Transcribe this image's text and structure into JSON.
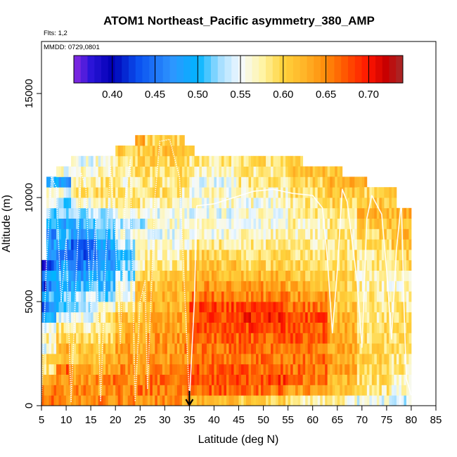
{
  "chart_data": {
    "type": "heatmap",
    "title": "ATOM1 Northeast_Pacific asymmetry_380_AMP",
    "flights_note": "Flts: 1,2",
    "date_note": "MMDD: 0729,0801",
    "xlabel": "Latitude (deg N)",
    "ylabel": "Altitude (m)",
    "xlim": [
      5,
      85
    ],
    "ylim": [
      0,
      17500
    ],
    "x_ticks": [
      "5",
      "10",
      "15",
      "20",
      "25",
      "30",
      "35",
      "40",
      "45",
      "50",
      "55",
      "60",
      "65",
      "70",
      "75",
      "80",
      "85"
    ],
    "y_ticks": [
      "0",
      "5000",
      "10000",
      "15000"
    ],
    "colorbar": {
      "range": [
        0.355,
        0.74
      ],
      "ticks": [
        "0.40",
        "0.45",
        "0.50",
        "0.55",
        "0.60",
        "0.65",
        "0.70"
      ],
      "tick_values": [
        0.4,
        0.45,
        0.5,
        0.55,
        0.6,
        0.65,
        0.7
      ],
      "stops": [
        {
          "v": 0.355,
          "color": "#8a2be2"
        },
        {
          "v": 0.375,
          "color": "#2b14d8"
        },
        {
          "v": 0.4,
          "color": "#0000b4"
        },
        {
          "v": 0.43,
          "color": "#0a50f0"
        },
        {
          "v": 0.47,
          "color": "#2e96ff"
        },
        {
          "v": 0.5,
          "color": "#00b4ff"
        },
        {
          "v": 0.525,
          "color": "#a0dcff"
        },
        {
          "v": 0.55,
          "color": "#f5faff"
        },
        {
          "v": 0.575,
          "color": "#fff5a8"
        },
        {
          "v": 0.6,
          "color": "#ffd23c"
        },
        {
          "v": 0.625,
          "color": "#ffb428"
        },
        {
          "v": 0.65,
          "color": "#ff8c0a"
        },
        {
          "v": 0.675,
          "color": "#ff5000"
        },
        {
          "v": 0.7,
          "color": "#ff1400"
        },
        {
          "v": 0.72,
          "color": "#c80000"
        },
        {
          "v": 0.74,
          "color": "#a52a2a"
        }
      ]
    },
    "annotation": {
      "type": "arrow",
      "latitude": 35,
      "label": ""
    },
    "bin_height_m": 500,
    "profiles": [
      {
        "lat_min": 5,
        "lat_max": 11,
        "alt_max": 7000,
        "base": [
          0.66,
          0.65,
          0.63,
          0.57,
          0.6,
          0.55,
          0.56,
          0.53,
          0.49,
          0.43,
          0.48,
          0.42,
          0.47,
          0.4
        ]
      },
      {
        "lat_min": 6,
        "lat_max": 10,
        "alt_max": 11000,
        "base": [
          0.66,
          0.65,
          0.63,
          0.59,
          0.61,
          0.56,
          0.57,
          0.54,
          0.5,
          0.46,
          0.5,
          0.46,
          0.5,
          0.44,
          0.47,
          0.48,
          0.45,
          0.5,
          0.52,
          0.54,
          0.56,
          0.5
        ]
      },
      {
        "lat_min": 8,
        "lat_max": 16,
        "alt_max": 11500,
        "base": [
          0.64,
          0.65,
          0.65,
          0.67,
          0.62,
          0.63,
          0.6,
          0.58,
          0.55,
          0.52,
          0.51,
          0.49,
          0.5,
          0.47,
          0.45,
          0.47,
          0.5,
          0.48,
          0.53,
          0.51,
          0.55,
          0.48,
          0.56
        ]
      },
      {
        "lat_min": 11,
        "lat_max": 20,
        "alt_max": 12000,
        "base": [
          0.65,
          0.65,
          0.64,
          0.63,
          0.61,
          0.61,
          0.59,
          0.57,
          0.55,
          0.53,
          0.53,
          0.5,
          0.48,
          0.46,
          0.44,
          0.43,
          0.47,
          0.5,
          0.53,
          0.56,
          0.58,
          0.57,
          0.56,
          0.55
        ]
      },
      {
        "lat_min": 16,
        "lat_max": 25,
        "alt_max": 12000,
        "base": [
          0.65,
          0.64,
          0.66,
          0.63,
          0.62,
          0.62,
          0.6,
          0.59,
          0.58,
          0.55,
          0.52,
          0.5,
          0.49,
          0.47,
          0.46,
          0.48,
          0.5,
          0.52,
          0.54,
          0.57,
          0.59,
          0.58,
          0.57,
          0.56
        ]
      },
      {
        "lat_min": 20,
        "lat_max": 27,
        "alt_max": 12500,
        "base": [
          0.65,
          0.65,
          0.65,
          0.65,
          0.64,
          0.64,
          0.63,
          0.62,
          0.61,
          0.58,
          0.56,
          0.55,
          0.53,
          0.52,
          0.51,
          0.53,
          0.55,
          0.53,
          0.56,
          0.58,
          0.58,
          0.57,
          0.58,
          0.59,
          0.6
        ]
      },
      {
        "lat_min": 24,
        "lat_max": 30,
        "alt_max": 13000,
        "base": [
          0.65,
          0.66,
          0.65,
          0.64,
          0.63,
          0.63,
          0.63,
          0.62,
          0.62,
          0.61,
          0.61,
          0.61,
          0.6,
          0.57,
          0.56,
          0.56,
          0.55,
          0.53,
          0.56,
          0.58,
          0.59,
          0.58,
          0.59,
          0.6,
          0.6,
          0.63
        ]
      },
      {
        "lat_min": 26,
        "lat_max": 34,
        "alt_max": 13000,
        "base": [
          0.65,
          0.66,
          0.66,
          0.65,
          0.64,
          0.64,
          0.64,
          0.63,
          0.63,
          0.62,
          0.62,
          0.61,
          0.6,
          0.58,
          0.57,
          0.56,
          0.55,
          0.56,
          0.55,
          0.57,
          0.59,
          0.58,
          0.59,
          0.6,
          0.61,
          0.6
        ]
      },
      {
        "lat_min": 33,
        "lat_max": 36,
        "alt_max": 12500,
        "base": [
          0.63,
          0.66,
          0.67,
          0.66,
          0.65,
          0.65,
          0.64,
          0.63,
          0.63,
          0.62,
          0.62,
          0.61,
          0.6,
          0.59,
          0.58,
          0.56,
          0.56,
          0.55,
          0.55,
          0.56,
          0.57,
          0.59,
          0.6,
          0.6,
          0.6
        ]
      },
      {
        "lat_min": 35,
        "lat_max": 47,
        "alt_max": 12000,
        "base": [
          0.62,
          0.67,
          0.68,
          0.67,
          0.66,
          0.66,
          0.67,
          0.67,
          0.68,
          0.68,
          0.66,
          0.64,
          0.62,
          0.61,
          0.6,
          0.58,
          0.56,
          0.56,
          0.55,
          0.56,
          0.56,
          0.55,
          0.57,
          0.58
        ]
      },
      {
        "lat_min": 45,
        "lat_max": 58,
        "alt_max": 12000,
        "base": [
          0.6,
          0.66,
          0.68,
          0.67,
          0.66,
          0.66,
          0.67,
          0.68,
          0.69,
          0.68,
          0.65,
          0.64,
          0.62,
          0.6,
          0.59,
          0.58,
          0.57,
          0.56,
          0.56,
          0.56,
          0.57,
          0.58,
          0.58,
          0.59
        ]
      },
      {
        "lat_min": 55,
        "lat_max": 66,
        "alt_max": 11500,
        "base": [
          0.58,
          0.64,
          0.66,
          0.66,
          0.66,
          0.66,
          0.67,
          0.67,
          0.68,
          0.66,
          0.64,
          0.62,
          0.61,
          0.6,
          0.59,
          0.58,
          0.57,
          0.57,
          0.58,
          0.58,
          0.59,
          0.6,
          0.61
        ]
      },
      {
        "lat_min": 63,
        "lat_max": 71,
        "alt_max": 11000,
        "base": [
          0.57,
          0.61,
          0.62,
          0.63,
          0.63,
          0.63,
          0.63,
          0.63,
          0.62,
          0.61,
          0.61,
          0.6,
          0.6,
          0.59,
          0.59,
          0.58,
          0.58,
          0.58,
          0.59,
          0.6,
          0.61,
          0.62
        ]
      },
      {
        "lat_min": 69,
        "lat_max": 77,
        "alt_max": 10500,
        "base": [
          0.55,
          0.58,
          0.59,
          0.6,
          0.6,
          0.6,
          0.59,
          0.59,
          0.58,
          0.58,
          0.58,
          0.57,
          0.57,
          0.58,
          0.58,
          0.59,
          0.6,
          0.61,
          0.62,
          0.61,
          0.6
        ]
      },
      {
        "lat_min": 76,
        "lat_max": 80,
        "alt_max": 9500,
        "base": [
          0.54,
          0.56,
          0.57,
          0.58,
          0.58,
          0.59,
          0.59,
          0.59,
          0.59,
          0.58,
          0.57,
          0.57,
          0.58,
          0.59,
          0.6,
          0.61,
          0.62,
          0.62,
          0.62
        ]
      }
    ],
    "flight_tracks": [
      [
        [
          5,
          200
        ],
        [
          6,
          6800
        ],
        [
          7,
          11000
        ],
        [
          8,
          10500
        ],
        [
          9,
          5000
        ],
        [
          10,
          8000
        ],
        [
          11,
          200
        ],
        [
          12,
          6000
        ],
        [
          13,
          11200
        ],
        [
          14,
          10500
        ],
        [
          15,
          4500
        ],
        [
          16,
          9000
        ],
        [
          17,
          200
        ],
        [
          18,
          7000
        ],
        [
          19,
          11500
        ],
        [
          20,
          8000
        ],
        [
          21,
          3000
        ],
        [
          22,
          10000
        ],
        [
          23,
          11800
        ],
        [
          24,
          200
        ],
        [
          25,
          5000
        ],
        [
          26,
          6000
        ],
        [
          26.5,
          800
        ],
        [
          28,
          10000
        ],
        [
          29,
          12700
        ],
        [
          31,
          12800
        ],
        [
          33,
          11000
        ],
        [
          34.5,
          3000
        ],
        [
          35,
          200
        ]
      ],
      [
        [
          35,
          200
        ],
        [
          36,
          5000
        ],
        [
          36.5,
          9600
        ],
        [
          40,
          9700
        ],
        [
          44,
          10000
        ],
        [
          48,
          10300
        ],
        [
          52,
          10400
        ],
        [
          56,
          10200
        ],
        [
          60,
          10100
        ],
        [
          62,
          9500
        ],
        [
          63,
          7000
        ],
        [
          64,
          3500
        ],
        [
          65,
          6500
        ],
        [
          66,
          10400
        ],
        [
          67,
          9800
        ],
        [
          69,
          6000
        ],
        [
          70,
          2800
        ],
        [
          71,
          9000
        ],
        [
          72,
          10100
        ],
        [
          74,
          9200
        ],
        [
          75,
          6500
        ],
        [
          76,
          3200
        ],
        [
          77,
          7500
        ],
        [
          78,
          9800
        ],
        [
          78.5,
          5000
        ],
        [
          79,
          1300
        ],
        [
          80,
          500
        ]
      ]
    ]
  }
}
